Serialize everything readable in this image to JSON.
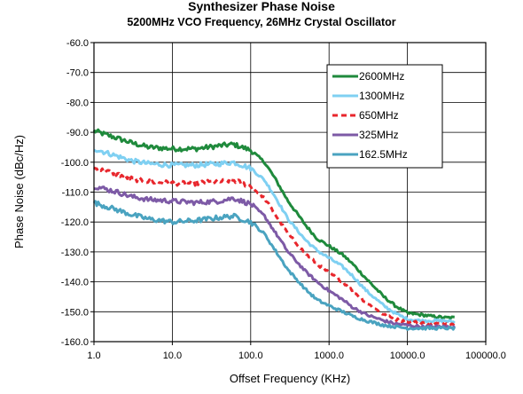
{
  "chart_data": {
    "type": "line",
    "title": "Synthesizer Phase Noise",
    "subtitle": "5200MHz VCO Frequency, 26MHz Crystal Oscillator",
    "xlabel": "Offset Frequency (KHz)",
    "ylabel": "Phase Noise (dBc/Hz)",
    "x_scale": "log",
    "xlim": [
      1,
      100000
    ],
    "ylim": [
      -160,
      -60
    ],
    "x_ticks": [
      "1.0",
      "10.0",
      "100.0",
      "1000.0",
      "10000.0",
      "100000.0"
    ],
    "y_ticks": [
      "-60.0",
      "-70.0",
      "-80.0",
      "-90.0",
      "-100.0",
      "-110.0",
      "-120.0",
      "-130.0",
      "-140.0",
      "-150.0",
      "-160.0"
    ],
    "grid": true,
    "legend_position": "top-right",
    "series": [
      {
        "name": "2600MHz",
        "color": "#1f8a3c",
        "dash": "solid",
        "points": [
          [
            1,
            -89.5
          ],
          [
            2,
            -92
          ],
          [
            3,
            -93.5
          ],
          [
            5,
            -95
          ],
          [
            10,
            -95.5
          ],
          [
            20,
            -95.5
          ],
          [
            40,
            -94.5
          ],
          [
            60,
            -94
          ],
          [
            100,
            -96
          ],
          [
            150,
            -100
          ],
          [
            200,
            -105
          ],
          [
            300,
            -113
          ],
          [
            500,
            -121
          ],
          [
            700,
            -125.5
          ],
          [
            1000,
            -128
          ],
          [
            1500,
            -131
          ],
          [
            2000,
            -134
          ],
          [
            3000,
            -139
          ],
          [
            5000,
            -145
          ],
          [
            7000,
            -148
          ],
          [
            10000,
            -150.5
          ],
          [
            15000,
            -151
          ],
          [
            20000,
            -151.5
          ],
          [
            30000,
            -152
          ],
          [
            40000,
            -152
          ]
        ]
      },
      {
        "name": "1300MHz",
        "color": "#7fd0f2",
        "dash": "solid",
        "points": [
          [
            1,
            -95.5
          ],
          [
            2,
            -98
          ],
          [
            3,
            -99.5
          ],
          [
            5,
            -100.5
          ],
          [
            10,
            -101
          ],
          [
            20,
            -101
          ],
          [
            40,
            -100.5
          ],
          [
            60,
            -100
          ],
          [
            100,
            -102
          ],
          [
            150,
            -106
          ],
          [
            200,
            -111
          ],
          [
            300,
            -119
          ],
          [
            500,
            -126
          ],
          [
            700,
            -129.5
          ],
          [
            1000,
            -132
          ],
          [
            1500,
            -135
          ],
          [
            2000,
            -138
          ],
          [
            3000,
            -143
          ],
          [
            5000,
            -148
          ],
          [
            7000,
            -150.5
          ],
          [
            10000,
            -152.5
          ],
          [
            15000,
            -153
          ],
          [
            20000,
            -153
          ],
          [
            30000,
            -153
          ],
          [
            40000,
            -153.5
          ]
        ]
      },
      {
        "name": "650MHz",
        "color": "#e8262c",
        "dash": "dashed",
        "points": [
          [
            1,
            -102
          ],
          [
            2,
            -104
          ],
          [
            3,
            -105.5
          ],
          [
            5,
            -106.5
          ],
          [
            10,
            -107
          ],
          [
            20,
            -107
          ],
          [
            40,
            -106.5
          ],
          [
            60,
            -106
          ],
          [
            100,
            -108
          ],
          [
            150,
            -112
          ],
          [
            200,
            -117
          ],
          [
            300,
            -124
          ],
          [
            500,
            -130.5
          ],
          [
            700,
            -134
          ],
          [
            1000,
            -137
          ],
          [
            1500,
            -140
          ],
          [
            2000,
            -143
          ],
          [
            3000,
            -147
          ],
          [
            5000,
            -151
          ],
          [
            7000,
            -152.5
          ],
          [
            10000,
            -153.5
          ],
          [
            15000,
            -153.5
          ],
          [
            20000,
            -154
          ],
          [
            30000,
            -154
          ],
          [
            40000,
            -154
          ]
        ]
      },
      {
        "name": "325MHz",
        "color": "#7d5aa6",
        "dash": "solid",
        "points": [
          [
            1,
            -108
          ],
          [
            2,
            -110
          ],
          [
            3,
            -111.5
          ],
          [
            5,
            -112.5
          ],
          [
            10,
            -113
          ],
          [
            20,
            -113.5
          ],
          [
            40,
            -113
          ],
          [
            60,
            -112
          ],
          [
            100,
            -114
          ],
          [
            150,
            -118
          ],
          [
            200,
            -123
          ],
          [
            300,
            -130
          ],
          [
            500,
            -136.5
          ],
          [
            700,
            -140
          ],
          [
            1000,
            -143
          ],
          [
            1500,
            -146
          ],
          [
            2000,
            -148.5
          ],
          [
            3000,
            -151
          ],
          [
            5000,
            -153
          ],
          [
            7000,
            -154
          ],
          [
            10000,
            -154.5
          ],
          [
            15000,
            -155
          ],
          [
            20000,
            -155
          ],
          [
            30000,
            -155
          ],
          [
            40000,
            -155
          ]
        ]
      },
      {
        "name": "162.5MHz",
        "color": "#4aa3c0",
        "dash": "solid",
        "points": [
          [
            1,
            -113.5
          ],
          [
            2,
            -116
          ],
          [
            3,
            -117.5
          ],
          [
            5,
            -119
          ],
          [
            10,
            -120
          ],
          [
            20,
            -119.5
          ],
          [
            40,
            -118.5
          ],
          [
            60,
            -118
          ],
          [
            100,
            -120
          ],
          [
            150,
            -124
          ],
          [
            200,
            -129
          ],
          [
            300,
            -136
          ],
          [
            500,
            -142.5
          ],
          [
            700,
            -146
          ],
          [
            1000,
            -148
          ],
          [
            1500,
            -150
          ],
          [
            2000,
            -151.5
          ],
          [
            3000,
            -153
          ],
          [
            5000,
            -154.5
          ],
          [
            7000,
            -155
          ],
          [
            10000,
            -155.5
          ],
          [
            15000,
            -155.5
          ],
          [
            20000,
            -155.5
          ],
          [
            30000,
            -155.5
          ],
          [
            40000,
            -155.5
          ]
        ]
      }
    ]
  }
}
